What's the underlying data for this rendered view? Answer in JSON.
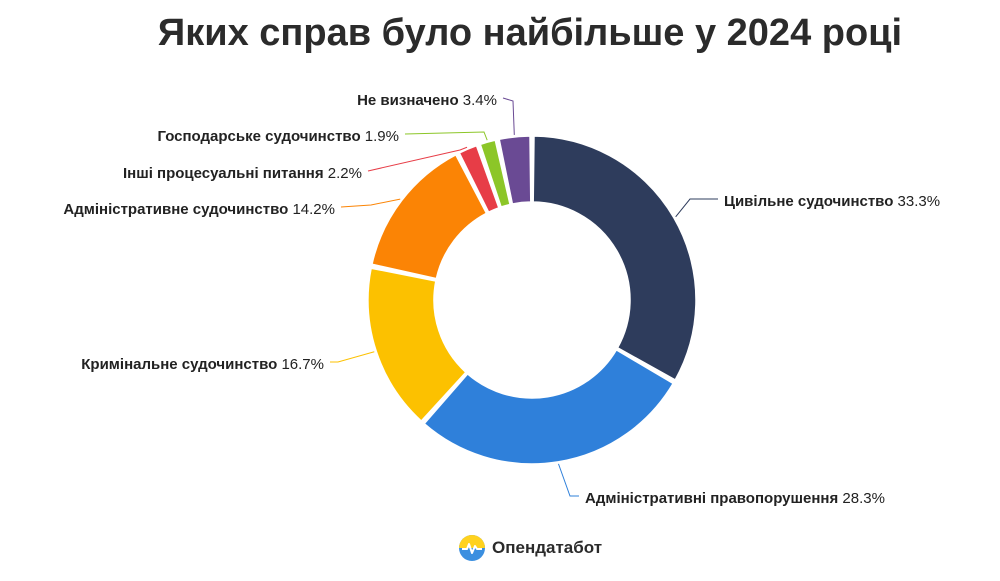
{
  "chart_data": {
    "type": "pie",
    "title": "Яких справ було найбільше у 2024 році",
    "unit": "%",
    "slices": [
      {
        "label": "Цивільне судочинство",
        "value": 33.3,
        "color": "#2e3c5c"
      },
      {
        "label": "Адміністративні правопорушення",
        "value": 28.3,
        "color": "#2f80da"
      },
      {
        "label": "Кримінальне судочинство",
        "value": 16.7,
        "color": "#fcc100"
      },
      {
        "label": "Адміністративне судочинство",
        "value": 14.2,
        "color": "#fb8405"
      },
      {
        "label": "Інші процесуальні питання",
        "value": 2.2,
        "color": "#e73d47"
      },
      {
        "label": "Господарське судочинство",
        "value": 1.9,
        "color": "#8cc628"
      },
      {
        "label": "Не визначено",
        "value": 3.4,
        "color": "#6a4a94"
      }
    ]
  },
  "footer": {
    "brand": "Опендатабот"
  }
}
